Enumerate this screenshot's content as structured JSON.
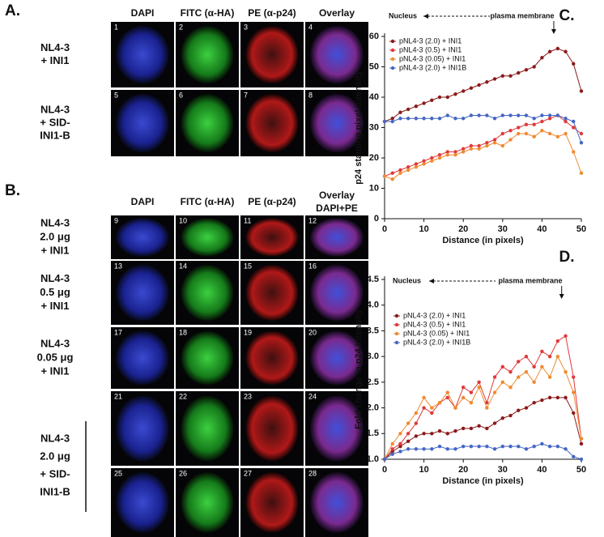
{
  "panel_a": {
    "label": "A.",
    "headers": [
      "DAPI",
      "FITC (α-HA)",
      "PE (α-p24)",
      "Overlay"
    ],
    "rows": [
      {
        "label": [
          "NL4-3",
          "+ INI1"
        ],
        "images": [
          "1",
          "2",
          "3",
          "4"
        ]
      },
      {
        "label": [
          "NL4-3",
          "+ SID-",
          "INI1-B"
        ],
        "images": [
          "5",
          "6",
          "7",
          "8"
        ]
      }
    ]
  },
  "panel_b": {
    "label": "B.",
    "headers": [
      [
        "DAPI"
      ],
      [
        "FITC (α-HA)"
      ],
      [
        "PE (α-p24)"
      ],
      [
        "Overlay",
        "DAPI+PE"
      ]
    ],
    "rows": [
      {
        "label": [
          "NL4-3",
          "2.0 μg",
          "+ INI1"
        ],
        "images": [
          "9",
          "10",
          "11",
          "12"
        ]
      },
      {
        "label": [
          "NL4-3",
          "0.5 μg",
          "+ INI1"
        ],
        "images": [
          "13",
          "14",
          "15",
          "16"
        ]
      },
      {
        "label": [
          "NL4-3",
          "0.05 μg",
          "+ INI1"
        ],
        "images": [
          "17",
          "18",
          "19",
          "20"
        ]
      },
      {
        "images": [
          "21",
          "22",
          "23",
          "24"
        ]
      },
      {
        "images": [
          "25",
          "26",
          "27",
          "28"
        ]
      }
    ],
    "group_label": [
      "NL4-3",
      "2.0 μg",
      "+ SID-",
      "INI1-B"
    ]
  },
  "chart_data": [
    {
      "type": "line",
      "panel_label": "C.",
      "annotations": [
        "Nucleus",
        "plasma membrane"
      ],
      "x_label": "Distance (in pixels)",
      "y_label": "p24 staining pixel intensity",
      "x": [
        0,
        2,
        4,
        6,
        8,
        10,
        12,
        14,
        16,
        18,
        20,
        22,
        24,
        26,
        28,
        30,
        32,
        34,
        36,
        38,
        40,
        42,
        44,
        46,
        48,
        50
      ],
      "xlim": [
        0,
        50
      ],
      "xticks": [
        0,
        10,
        20,
        30,
        40,
        50
      ],
      "ylim": [
        0,
        60
      ],
      "yticks": [
        0,
        10,
        20,
        30,
        40,
        50,
        60
      ],
      "series": [
        {
          "name": "pNL4-3 (2.0) + INI1",
          "color": "#8b1a1a",
          "values": [
            32,
            33,
            35,
            36,
            37,
            38,
            39,
            40,
            40,
            41,
            42,
            43,
            44,
            45,
            46,
            47,
            47,
            48,
            49,
            50,
            53,
            55,
            56,
            55,
            51,
            42
          ]
        },
        {
          "name": "pNL4-3 (0.5) + INI1",
          "color": "#e0393b",
          "values": [
            14,
            15,
            16,
            17,
            18,
            19,
            20,
            21,
            22,
            22,
            23,
            24,
            24,
            25,
            26,
            28,
            29,
            30,
            31,
            31,
            32,
            33,
            34,
            32,
            30,
            28
          ]
        },
        {
          "name": "pNL4-3 (0.05) + INI1",
          "color": "#f08a30",
          "values": [
            14,
            13,
            15,
            16,
            17,
            18,
            19,
            20,
            21,
            21,
            22,
            23,
            23,
            24,
            25,
            24,
            26,
            28,
            28,
            27,
            29,
            28,
            27,
            28,
            22,
            15
          ]
        },
        {
          "name": "pNL4-3 (2.0) + INI1B",
          "color": "#4466c4",
          "values": [
            32,
            32,
            33,
            33,
            33,
            33,
            33,
            33,
            34,
            33,
            33,
            34,
            34,
            34,
            33,
            34,
            34,
            34,
            34,
            33,
            34,
            34,
            34,
            33,
            32,
            25
          ]
        }
      ]
    },
    {
      "type": "line",
      "panel_label": "D.",
      "annotations": [
        "Nucleus",
        "plasma membrane"
      ],
      "x_label": "Distance (in pixels)",
      "y_label": "Fold change in p24 intensity",
      "x": [
        0,
        2,
        4,
        6,
        8,
        10,
        12,
        14,
        16,
        18,
        20,
        22,
        24,
        26,
        28,
        30,
        32,
        34,
        36,
        38,
        40,
        42,
        44,
        46,
        48,
        50
      ],
      "xlim": [
        0,
        50
      ],
      "xticks": [
        0,
        10,
        20,
        30,
        40,
        50
      ],
      "ylim": [
        1,
        4.5
      ],
      "yticks": [
        {
          "value": 1,
          "label": "1.0"
        },
        1.5,
        {
          "value": 2,
          "label": "2.0"
        },
        2.5,
        {
          "value": 3,
          "label": "3.0"
        },
        3.5,
        {
          "value": 4,
          "label": "4.0"
        },
        4.5
      ],
      "series": [
        {
          "name": "pNL4-3 (2.0) + INI1",
          "color": "#8b1a1a",
          "values": [
            1.0,
            1.15,
            1.25,
            1.35,
            1.45,
            1.5,
            1.5,
            1.55,
            1.5,
            1.55,
            1.6,
            1.6,
            1.65,
            1.6,
            1.7,
            1.8,
            1.85,
            1.95,
            2.0,
            2.1,
            2.15,
            2.2,
            2.2,
            2.2,
            1.9,
            1.3
          ]
        },
        {
          "name": "pNL4-3 (0.5) + INI1",
          "color": "#e0393b",
          "values": [
            1.0,
            1.2,
            1.3,
            1.5,
            1.7,
            2.0,
            1.9,
            2.1,
            2.2,
            2.0,
            2.4,
            2.3,
            2.5,
            2.1,
            2.6,
            2.8,
            2.7,
            2.9,
            3.0,
            2.8,
            3.1,
            3.0,
            3.3,
            3.4,
            2.6,
            1.4
          ]
        },
        {
          "name": "pNL4-3 (0.05) + INI1",
          "color": "#f08a30",
          "values": [
            1.0,
            1.3,
            1.5,
            1.7,
            1.9,
            2.2,
            2.0,
            2.1,
            2.3,
            2.0,
            2.2,
            2.1,
            2.4,
            2.0,
            2.3,
            2.5,
            2.4,
            2.6,
            2.7,
            2.5,
            2.8,
            2.6,
            3.0,
            2.7,
            2.3,
            1.4
          ]
        },
        {
          "name": "pNL4-3 (2.0) + INI1B",
          "color": "#4466c4",
          "values": [
            1.0,
            1.1,
            1.15,
            1.2,
            1.2,
            1.2,
            1.2,
            1.25,
            1.2,
            1.2,
            1.25,
            1.25,
            1.25,
            1.25,
            1.2,
            1.25,
            1.25,
            1.25,
            1.2,
            1.25,
            1.3,
            1.25,
            1.25,
            1.2,
            1.05,
            1.0
          ]
        }
      ]
    }
  ]
}
